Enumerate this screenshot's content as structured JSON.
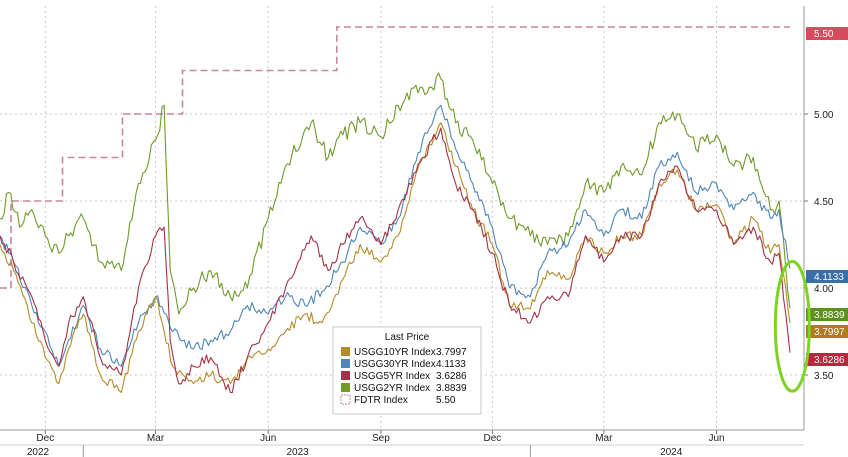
{
  "chart_data": {
    "type": "line",
    "title": "",
    "xlabel": "",
    "ylabel": "",
    "x_range": [
      "2022-10-25",
      "2024-07-31"
    ],
    "ylim": [
      3.15,
      5.55
    ],
    "y_ticks": [
      "3.50",
      "4.00",
      "4.50",
      "5.00"
    ],
    "x_ticks": [
      {
        "label": "Dec",
        "date": "2022-12-01"
      },
      {
        "label": "Mar",
        "date": "2023-03-01"
      },
      {
        "label": "Jun",
        "date": "2023-06-01"
      },
      {
        "label": "Sep",
        "date": "2023-09-01"
      },
      {
        "label": "Dec",
        "date": "2023-12-01"
      },
      {
        "label": "Mar",
        "date": "2024-03-01"
      },
      {
        "label": "Jun",
        "date": "2024-06-01"
      }
    ],
    "year_labels": [
      {
        "label": "2022",
        "date": "2022-11-25"
      },
      {
        "label": "2023",
        "date": "2023-06-25"
      },
      {
        "label": "2024",
        "date": "2024-04-25"
      }
    ],
    "grid": true,
    "legend": {
      "title": "Last Price",
      "placement": "bottom-center",
      "entries": [
        {
          "name": "USGG10YR Index",
          "value": "3.7997",
          "color": "#b58a2a"
        },
        {
          "name": "USGG30YR Index",
          "value": "4.1133",
          "color": "#4e86b8"
        },
        {
          "name": "USGG5YR Index",
          "value": "3.6286",
          "color": "#a23344"
        },
        {
          "name": "USGG2YR Index",
          "value": "3.8839",
          "color": "#6f9a2a"
        },
        {
          "name": "FDTR Index",
          "value": "5.50",
          "color": "#c9869c"
        }
      ]
    },
    "last_price_tags": [
      {
        "text": "5.50",
        "value": 5.5,
        "color": "#d94a5e"
      },
      {
        "text": "4.1133",
        "value": 4.1133,
        "color": "#3a6ea8"
      },
      {
        "text": "3.8839",
        "value": 3.8839,
        "color": "#5f8f22"
      },
      {
        "text": "3.7997",
        "value": 3.7997,
        "color": "#b07a1e"
      },
      {
        "text": "3.6286",
        "value": 3.6286,
        "color": "#b8283c"
      }
    ],
    "series": [
      {
        "name": "FDTR Index",
        "style": "step",
        "color": "#c9869c",
        "points": [
          [
            "2022-10-25",
            4.0
          ],
          [
            "2022-11-03",
            4.0
          ],
          [
            "2022-11-03",
            4.5
          ],
          [
            "2022-12-15",
            4.5
          ],
          [
            "2022-12-15",
            4.75
          ],
          [
            "2023-02-02",
            4.75
          ],
          [
            "2023-02-02",
            5.0
          ],
          [
            "2023-03-23",
            5.0
          ],
          [
            "2023-03-23",
            5.25
          ],
          [
            "2023-07-27",
            5.25
          ],
          [
            "2023-07-27",
            5.5
          ],
          [
            "2024-07-31",
            5.5
          ]
        ]
      },
      {
        "name": "USGG2YR Index",
        "color": "#6f9a2a",
        "points": [
          [
            "2022-10-25",
            4.4
          ],
          [
            "2022-11-01",
            4.55
          ],
          [
            "2022-11-10",
            4.35
          ],
          [
            "2022-11-20",
            4.45
          ],
          [
            "2022-12-01",
            4.3
          ],
          [
            "2022-12-12",
            4.2
          ],
          [
            "2022-12-20",
            4.3
          ],
          [
            "2023-01-01",
            4.4
          ],
          [
            "2023-01-15",
            4.15
          ],
          [
            "2023-02-01",
            4.1
          ],
          [
            "2023-02-15",
            4.6
          ],
          [
            "2023-03-01",
            4.85
          ],
          [
            "2023-03-08",
            5.05
          ],
          [
            "2023-03-13",
            4.1
          ],
          [
            "2023-03-20",
            3.85
          ],
          [
            "2023-04-01",
            4.0
          ],
          [
            "2023-04-15",
            4.1
          ],
          [
            "2023-05-01",
            3.95
          ],
          [
            "2023-05-15",
            4.0
          ],
          [
            "2023-06-01",
            4.4
          ],
          [
            "2023-06-15",
            4.7
          ],
          [
            "2023-07-06",
            4.95
          ],
          [
            "2023-07-20",
            4.75
          ],
          [
            "2023-08-01",
            4.88
          ],
          [
            "2023-08-15",
            4.95
          ],
          [
            "2023-09-01",
            4.87
          ],
          [
            "2023-09-15",
            5.05
          ],
          [
            "2023-10-05",
            5.15
          ],
          [
            "2023-10-20",
            5.2
          ],
          [
            "2023-11-01",
            4.95
          ],
          [
            "2023-11-15",
            4.85
          ],
          [
            "2023-12-01",
            4.6
          ],
          [
            "2023-12-15",
            4.4
          ],
          [
            "2024-01-01",
            4.3
          ],
          [
            "2024-01-15",
            4.25
          ],
          [
            "2024-02-01",
            4.3
          ],
          [
            "2024-02-15",
            4.6
          ],
          [
            "2024-03-01",
            4.55
          ],
          [
            "2024-03-15",
            4.7
          ],
          [
            "2024-04-01",
            4.65
          ],
          [
            "2024-04-15",
            4.95
          ],
          [
            "2024-04-30",
            5.0
          ],
          [
            "2024-05-15",
            4.8
          ],
          [
            "2024-06-01",
            4.88
          ],
          [
            "2024-06-15",
            4.7
          ],
          [
            "2024-07-01",
            4.75
          ],
          [
            "2024-07-15",
            4.45
          ],
          [
            "2024-07-22",
            4.5
          ],
          [
            "2024-07-31",
            3.8839
          ]
        ]
      },
      {
        "name": "USGG30YR Index",
        "color": "#4e86b8",
        "points": [
          [
            "2022-10-25",
            4.3
          ],
          [
            "2022-11-05",
            4.15
          ],
          [
            "2022-11-20",
            3.9
          ],
          [
            "2022-12-01",
            3.75
          ],
          [
            "2022-12-12",
            3.55
          ],
          [
            "2022-12-20",
            3.7
          ],
          [
            "2023-01-01",
            3.9
          ],
          [
            "2023-01-15",
            3.65
          ],
          [
            "2023-02-01",
            3.55
          ],
          [
            "2023-02-15",
            3.8
          ],
          [
            "2023-03-01",
            3.95
          ],
          [
            "2023-03-15",
            3.75
          ],
          [
            "2023-04-01",
            3.65
          ],
          [
            "2023-04-15",
            3.7
          ],
          [
            "2023-05-01",
            3.75
          ],
          [
            "2023-05-15",
            3.9
          ],
          [
            "2023-06-01",
            3.85
          ],
          [
            "2023-06-15",
            3.95
          ],
          [
            "2023-07-01",
            3.9
          ],
          [
            "2023-07-15",
            3.98
          ],
          [
            "2023-08-01",
            4.15
          ],
          [
            "2023-08-15",
            4.35
          ],
          [
            "2023-09-01",
            4.25
          ],
          [
            "2023-09-15",
            4.4
          ],
          [
            "2023-10-05",
            4.85
          ],
          [
            "2023-10-20",
            5.05
          ],
          [
            "2023-11-01",
            4.8
          ],
          [
            "2023-11-15",
            4.6
          ],
          [
            "2023-12-01",
            4.35
          ],
          [
            "2023-12-15",
            4.0
          ],
          [
            "2024-01-01",
            3.95
          ],
          [
            "2024-01-15",
            4.2
          ],
          [
            "2024-02-01",
            4.25
          ],
          [
            "2024-02-15",
            4.45
          ],
          [
            "2024-03-01",
            4.3
          ],
          [
            "2024-03-15",
            4.45
          ],
          [
            "2024-04-01",
            4.4
          ],
          [
            "2024-04-15",
            4.7
          ],
          [
            "2024-04-30",
            4.78
          ],
          [
            "2024-05-15",
            4.55
          ],
          [
            "2024-06-01",
            4.6
          ],
          [
            "2024-06-15",
            4.45
          ],
          [
            "2024-07-01",
            4.55
          ],
          [
            "2024-07-15",
            4.4
          ],
          [
            "2024-07-22",
            4.45
          ],
          [
            "2024-07-31",
            4.1133
          ]
        ]
      },
      {
        "name": "USGG10YR Index",
        "color": "#b58a2a",
        "points": [
          [
            "2022-10-25",
            4.25
          ],
          [
            "2022-11-05",
            4.1
          ],
          [
            "2022-11-20",
            3.8
          ],
          [
            "2022-12-01",
            3.6
          ],
          [
            "2022-12-12",
            3.45
          ],
          [
            "2022-12-20",
            3.65
          ],
          [
            "2023-01-01",
            3.85
          ],
          [
            "2023-01-15",
            3.5
          ],
          [
            "2023-02-01",
            3.4
          ],
          [
            "2023-02-15",
            3.75
          ],
          [
            "2023-03-01",
            3.95
          ],
          [
            "2023-03-15",
            3.55
          ],
          [
            "2023-04-01",
            3.45
          ],
          [
            "2023-04-15",
            3.5
          ],
          [
            "2023-05-01",
            3.45
          ],
          [
            "2023-05-15",
            3.6
          ],
          [
            "2023-06-01",
            3.65
          ],
          [
            "2023-06-15",
            3.75
          ],
          [
            "2023-07-01",
            3.85
          ],
          [
            "2023-07-15",
            3.8
          ],
          [
            "2023-08-01",
            4.05
          ],
          [
            "2023-08-15",
            4.25
          ],
          [
            "2023-09-01",
            4.15
          ],
          [
            "2023-09-15",
            4.3
          ],
          [
            "2023-10-05",
            4.75
          ],
          [
            "2023-10-20",
            4.95
          ],
          [
            "2023-11-01",
            4.7
          ],
          [
            "2023-11-15",
            4.45
          ],
          [
            "2023-12-01",
            4.25
          ],
          [
            "2023-12-15",
            3.9
          ],
          [
            "2024-01-01",
            3.88
          ],
          [
            "2024-01-15",
            4.1
          ],
          [
            "2024-02-01",
            4.05
          ],
          [
            "2024-02-15",
            4.3
          ],
          [
            "2024-03-01",
            4.2
          ],
          [
            "2024-03-15",
            4.3
          ],
          [
            "2024-04-01",
            4.3
          ],
          [
            "2024-04-15",
            4.6
          ],
          [
            "2024-04-30",
            4.68
          ],
          [
            "2024-05-15",
            4.45
          ],
          [
            "2024-06-01",
            4.48
          ],
          [
            "2024-06-15",
            4.25
          ],
          [
            "2024-07-01",
            4.4
          ],
          [
            "2024-07-15",
            4.2
          ],
          [
            "2024-07-22",
            4.25
          ],
          [
            "2024-07-31",
            3.7997
          ]
        ]
      },
      {
        "name": "USGG5YR Index",
        "color": "#a23344",
        "points": [
          [
            "2022-10-25",
            4.3
          ],
          [
            "2022-11-05",
            4.15
          ],
          [
            "2022-11-20",
            3.95
          ],
          [
            "2022-12-01",
            3.7
          ],
          [
            "2022-12-12",
            3.55
          ],
          [
            "2022-12-20",
            3.8
          ],
          [
            "2023-01-01",
            3.95
          ],
          [
            "2023-01-15",
            3.6
          ],
          [
            "2023-02-01",
            3.5
          ],
          [
            "2023-02-15",
            4.0
          ],
          [
            "2023-03-01",
            4.3
          ],
          [
            "2023-03-08",
            4.35
          ],
          [
            "2023-03-13",
            3.7
          ],
          [
            "2023-03-20",
            3.45
          ],
          [
            "2023-04-01",
            3.55
          ],
          [
            "2023-04-15",
            3.6
          ],
          [
            "2023-05-01",
            3.4
          ],
          [
            "2023-05-15",
            3.6
          ],
          [
            "2023-06-01",
            3.8
          ],
          [
            "2023-06-15",
            4.0
          ],
          [
            "2023-07-06",
            4.3
          ],
          [
            "2023-07-20",
            4.1
          ],
          [
            "2023-08-01",
            4.25
          ],
          [
            "2023-08-15",
            4.4
          ],
          [
            "2023-09-01",
            4.25
          ],
          [
            "2023-09-15",
            4.45
          ],
          [
            "2023-10-05",
            4.75
          ],
          [
            "2023-10-20",
            4.92
          ],
          [
            "2023-11-01",
            4.6
          ],
          [
            "2023-11-15",
            4.45
          ],
          [
            "2023-12-01",
            4.2
          ],
          [
            "2023-12-15",
            3.9
          ],
          [
            "2024-01-01",
            3.8
          ],
          [
            "2024-01-15",
            3.95
          ],
          [
            "2024-02-01",
            3.95
          ],
          [
            "2024-02-15",
            4.3
          ],
          [
            "2024-03-01",
            4.15
          ],
          [
            "2024-03-15",
            4.3
          ],
          [
            "2024-04-01",
            4.3
          ],
          [
            "2024-04-15",
            4.6
          ],
          [
            "2024-04-30",
            4.7
          ],
          [
            "2024-05-15",
            4.45
          ],
          [
            "2024-06-01",
            4.45
          ],
          [
            "2024-06-15",
            4.25
          ],
          [
            "2024-07-01",
            4.35
          ],
          [
            "2024-07-15",
            4.15
          ],
          [
            "2024-07-22",
            4.2
          ],
          [
            "2024-07-31",
            3.6286
          ]
        ]
      }
    ],
    "annotation": {
      "type": "ellipse",
      "color": "#7ed321",
      "date": "2024-07-28",
      "y_center": 3.78,
      "y_half_height": 0.35
    }
  }
}
